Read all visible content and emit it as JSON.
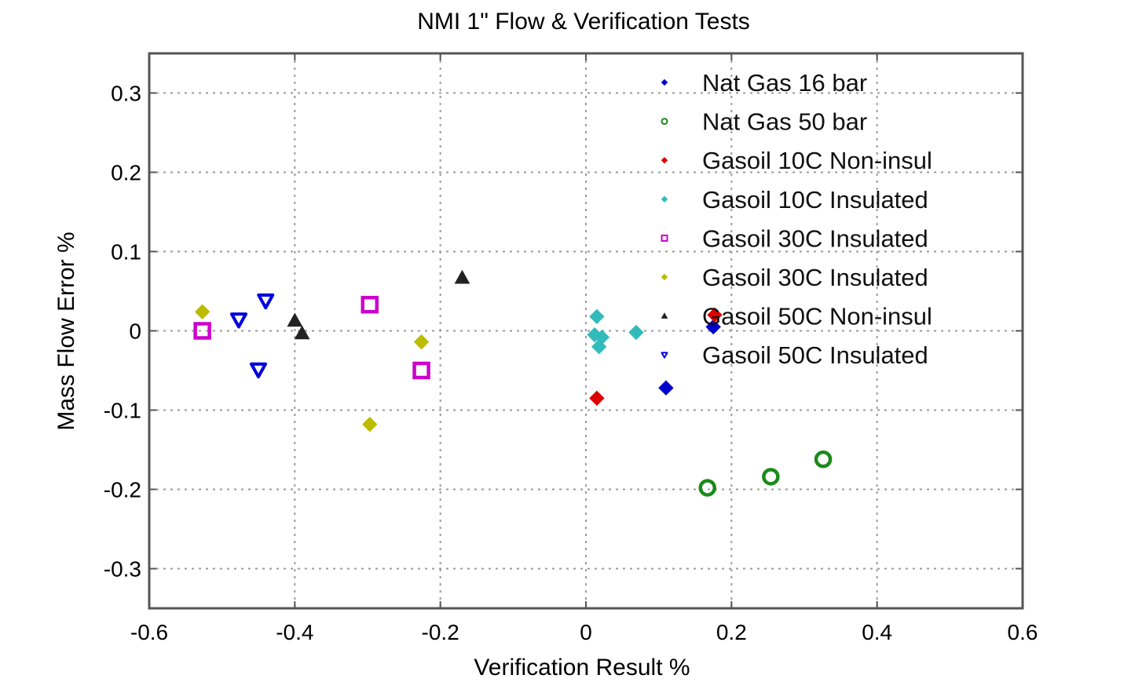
{
  "chart_data": {
    "type": "scatter",
    "title": "NMI 1\" Flow & Verification Tests",
    "xlabel": "Verification Result %",
    "ylabel": "Mass Flow Error %",
    "xlim": [
      -0.6,
      0.6
    ],
    "ylim": [
      -0.35,
      0.35
    ],
    "xticks": [
      -0.6,
      -0.4,
      -0.2,
      0,
      0.2,
      0.4,
      0.6
    ],
    "xtick_labels": [
      "-0.6",
      "-0.4",
      "-0.2",
      "0",
      "0.2",
      "0.4",
      "0.6"
    ],
    "yticks": [
      0.3,
      0.2,
      0.1,
      0,
      -0.1,
      -0.2,
      -0.3
    ],
    "ytick_labels": [
      "0.3",
      "0.2",
      "0.1",
      "0",
      "-0.1",
      "-0.2",
      "-0.3"
    ],
    "grid": true,
    "legend_position": "top-right",
    "series": [
      {
        "name": "Nat Gas 16 bar",
        "color": "#0000cc",
        "marker": "diamond",
        "points": [
          [
            0.11,
            -0.072
          ],
          [
            0.175,
            0.005
          ]
        ]
      },
      {
        "name": "Nat Gas 50 bar",
        "color": "#1a8a1a",
        "marker": "circle",
        "points": [
          [
            0.167,
            -0.198
          ],
          [
            0.254,
            -0.184
          ],
          [
            0.326,
            -0.162
          ]
        ]
      },
      {
        "name": "Gasoil 10C Non-insul",
        "color": "#dd0000",
        "marker": "diamond",
        "points": [
          [
            0.015,
            -0.085
          ],
          [
            0.177,
            0.02
          ]
        ]
      },
      {
        "name": "Gasoil 10C Insulated",
        "color": "#33bbbb",
        "marker": "diamond",
        "points": [
          [
            0.015,
            0.018
          ],
          [
            0.012,
            -0.005
          ],
          [
            0.022,
            -0.008
          ],
          [
            0.018,
            -0.02
          ],
          [
            0.069,
            -0.002
          ]
        ]
      },
      {
        "name": "Gasoil 30C Insulated",
        "color": "#cc00cc",
        "marker": "square",
        "points": [
          [
            -0.527,
            0.0
          ],
          [
            -0.297,
            0.033
          ],
          [
            -0.226,
            -0.05
          ]
        ]
      },
      {
        "name": "Gasoil 30C Insulated",
        "color": "#bbbb00",
        "marker": "diamond",
        "points": [
          [
            -0.527,
            0.024
          ],
          [
            -0.226,
            -0.014
          ],
          [
            -0.297,
            -0.118
          ]
        ]
      },
      {
        "name": "Gasoil 50C Non-insul",
        "color": "#222222",
        "marker": "triangle-up",
        "points": [
          [
            -0.4,
            0.013
          ],
          [
            -0.39,
            -0.003
          ],
          [
            -0.17,
            0.067
          ]
        ]
      },
      {
        "name": "Gasoil 50C Insulated",
        "color": "#0000dd",
        "marker": "triangle-down",
        "points": [
          [
            -0.477,
            0.014
          ],
          [
            -0.44,
            0.038
          ],
          [
            -0.45,
            -0.049
          ]
        ]
      }
    ]
  }
}
